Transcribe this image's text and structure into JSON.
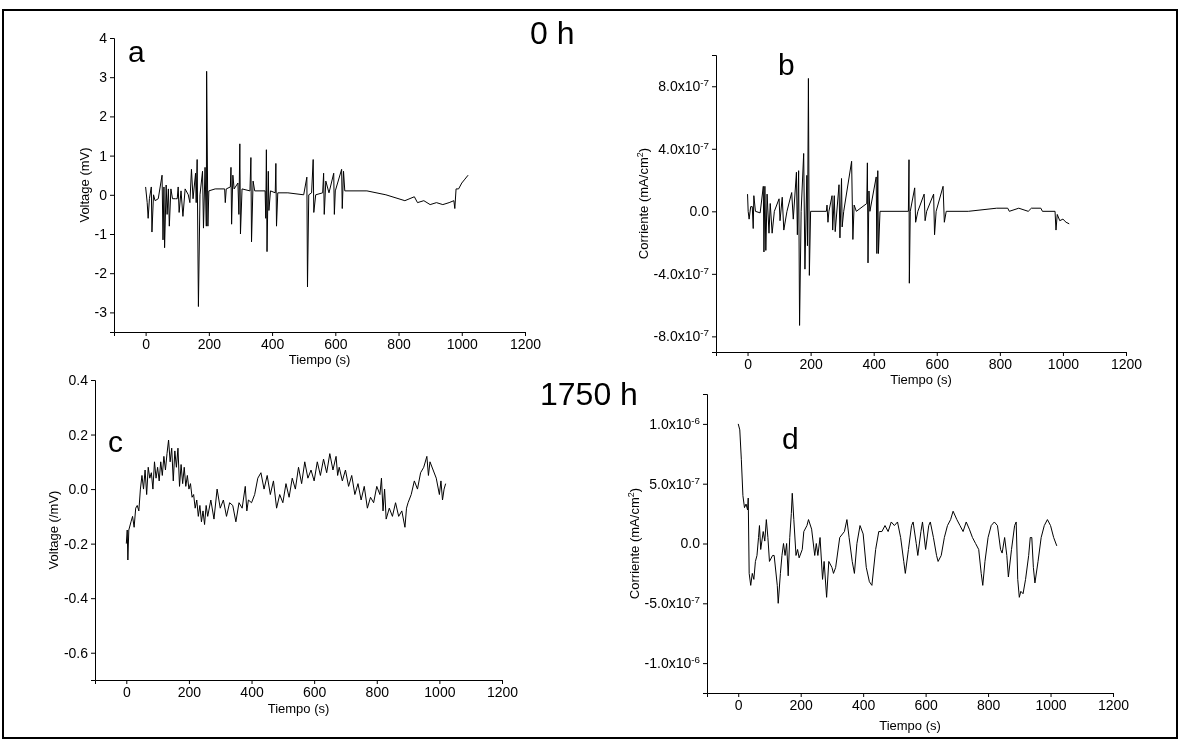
{
  "chart_data": [
    {
      "type": "line",
      "xlabel": "Tiempo (s)",
      "ylabel": "Voltage (mV)",
      "annotations": [
        "a"
      ],
      "xlim": [
        -100,
        1200
      ],
      "xticks": [
        0,
        200,
        400,
        600,
        800,
        1000,
        1200
      ],
      "ylim": [
        -3.5,
        4
      ],
      "yticks": [
        -3,
        -2,
        -1,
        0,
        1,
        2,
        3,
        4
      ],
      "grid": false,
      "series": [
        {
          "color": "#000000",
          "x": [
            0,
            5,
            8,
            12,
            18,
            20,
            25,
            30,
            40,
            52,
            55,
            58,
            60,
            65,
            68,
            72,
            75,
            80,
            85,
            95,
            100,
            103,
            106,
            112,
            118,
            125,
            135,
            140,
            145,
            150,
            158,
            160,
            163,
            167,
            172,
            180,
            183,
            188,
            192,
            193,
            197,
            200,
            220,
            250,
            252,
            255,
            268,
            270,
            272,
            276,
            280,
            292,
            295,
            298,
            300,
            305,
            330,
            333,
            335,
            340,
            345,
            378,
            380,
            382,
            384,
            388,
            390,
            395,
            410,
            412,
            414,
            418,
            450,
            500,
            510,
            512,
            516,
            525,
            530,
            532,
            538,
            560,
            563,
            565,
            570,
            580,
            595,
            597,
            600,
            620,
            622,
            626,
            630,
            700,
            760,
            820,
            850,
            860,
            880,
            900,
            920,
            940,
            960,
            975,
            978,
            982,
            990,
            1000,
            1010,
            1020
          ],
          "values": [
            0.2,
            -0.2,
            -0.6,
            -0.1,
            0.2,
            -0.95,
            0,
            -0.15,
            -0.1,
            0.5,
            -1.15,
            0.2,
            -1.35,
            0.25,
            -0.5,
            0.15,
            -0.8,
            0.15,
            -0.1,
            -0.1,
            -0.1,
            0.2,
            -0.45,
            0.1,
            -0.55,
            0.15,
            0,
            -0.2,
            0.65,
            -0.1,
            0.55,
            -0.2,
            0.9,
            -2.85,
            0,
            0.6,
            -0.85,
            0.7,
            -0.8,
            3.15,
            -0.8,
            0.1,
            0.15,
            0.15,
            -0.2,
            0.15,
            0.2,
            0.7,
            -0.75,
            0.5,
            0.15,
            0.3,
            -0.5,
            1.3,
            -1,
            0.15,
            0.1,
            0.95,
            -1.2,
            0.35,
            0.1,
            0.1,
            -0.6,
            1.15,
            -1.45,
            0.6,
            -0.4,
            0.1,
            0.05,
            0.8,
            -0.8,
            0.05,
            0.05,
            0,
            0.45,
            -2.35,
            0,
            0.05,
            0.9,
            -0.45,
            0,
            0.05,
            0.55,
            -0.5,
            0.35,
            0.05,
            0.55,
            -0.5,
            0.1,
            0.65,
            -0.35,
            0.6,
            0.1,
            0.1,
            0,
            -0.15,
            -0.05,
            -0.2,
            -0.15,
            -0.25,
            -0.2,
            -0.25,
            -0.2,
            -0.15,
            -0.35,
            0.15,
            0.15,
            0.3,
            0.4,
            0.5
          ]
        }
      ]
    },
    {
      "type": "line",
      "xlabel": "Tiempo (s)",
      "ylabel": "Corriente (mA/cm$^{2}$)",
      "annotations": [
        "b",
        "0 h"
      ],
      "xlim": [
        -100,
        1200
      ],
      "xticks": [
        0,
        200,
        400,
        600,
        800,
        1000,
        1200
      ],
      "ylim": [
        -9e-07,
        1e-06
      ],
      "yticks": [
        {
          "value": -8e-07,
          "label": "-8.0x10$^{-7}$"
        },
        {
          "value": -4e-07,
          "label": "-4.0x10$^{-7}$"
        },
        {
          "value": 0,
          "label": "0.0"
        },
        {
          "value": 4e-07,
          "label": "4.0x10$^{-7}$"
        },
        {
          "value": 8e-07,
          "label": "8.0x10$^{-7}$"
        }
      ],
      "grid": false,
      "series": [
        {
          "color": "#000000",
          "x": [
            0,
            2,
            5,
            10,
            15,
            18,
            20,
            25,
            40,
            50,
            52,
            55,
            58,
            62,
            68,
            72,
            78,
            85,
            100,
            103,
            110,
            115,
            125,
            140,
            145,
            155,
            158,
            162,
            165,
            170,
            178,
            182,
            188,
            190,
            193,
            196,
            200,
            250,
            252,
            255,
            258,
            268,
            270,
            275,
            278,
            290,
            293,
            298,
            300,
            305,
            330,
            334,
            338,
            345,
            378,
            380,
            382,
            385,
            388,
            408,
            410,
            413,
            415,
            420,
            510,
            512,
            513,
            516,
            530,
            533,
            540,
            560,
            563,
            568,
            590,
            593,
            598,
            620,
            624,
            630,
            700,
            790,
            825,
            830,
            860,
            890,
            900,
            930,
            935,
            975,
            978,
            982,
            990,
            1000,
            1010,
            1020
          ],
          "values": [
            1.1e-07,
            0,
            -5e-08,
            3e-08,
            3e-08,
            -1.1e-07,
            1e-07,
            0,
            -1e-08,
            1.6e-07,
            -2.6e-07,
            1.6e-07,
            -2.5e-07,
            1.1e-07,
            -1.4e-07,
            5e-08,
            -1.4e-07,
            0,
            8e-08,
            -6e-08,
            9e-08,
            -1.2e-07,
            0,
            1.2e-07,
            -5e-08,
            2.5e-07,
            -1.5e-07,
            2.6e-07,
            -7.3e-07,
            0,
            3.7e-07,
            -3.7e-07,
            2.3e-07,
            -2.2e-07,
            8.5e-07,
            -4.1e-07,
            0,
            0,
            4e-08,
            -7e-08,
            0,
            1e-07,
            -1.2e-07,
            1e-07,
            -1.3e-07,
            1.7e-07,
            -1.7e-07,
            2.1e-07,
            -1e-07,
            0,
            3.2e-07,
            -1.8e-07,
            4e-08,
            0,
            5e-08,
            3.1e-07,
            -3.3e-07,
            1.3e-07,
            0,
            2.2e-07,
            -2.7e-07,
            2.6e-07,
            -2.7e-07,
            0,
            0,
            3.3e-07,
            -4.6e-07,
            0,
            1.5e-07,
            -7e-08,
            0,
            1.1e-07,
            -6e-08,
            0,
            1.1e-07,
            -1.5e-07,
            0,
            1.6e-07,
            -7e-08,
            0,
            0,
            2e-08,
            2e-08,
            0,
            2e-08,
            0,
            2e-08,
            2e-08,
            0,
            0,
            -1.2e-07,
            -2e-08,
            -6e-08,
            -5e-08,
            -7e-08,
            -8e-08
          ]
        }
      ]
    },
    {
      "type": "line",
      "xlabel": "Tiempo (s)",
      "ylabel": "Voltage (/mV)",
      "annotations": [
        "c"
      ],
      "xlim": [
        -100,
        1200
      ],
      "xticks": [
        0,
        200,
        400,
        600,
        800,
        1000,
        1200
      ],
      "ylim": [
        -0.7,
        0.4
      ],
      "yticks": [
        -0.6,
        -0.4,
        -0.2,
        {
          "value": 0,
          "label": "0.0"
        },
        0.2,
        0.4
      ],
      "grid": false,
      "series": [
        {
          "color": "#000000",
          "x": [
            0,
            3,
            5,
            8,
            15,
            20,
            25,
            30,
            35,
            40,
            45,
            50,
            55,
            60,
            65,
            70,
            75,
            80,
            85,
            90,
            95,
            100,
            105,
            110,
            115,
            120,
            125,
            130,
            135,
            140,
            145,
            150,
            155,
            160,
            165,
            170,
            175,
            180,
            185,
            190,
            195,
            200,
            205,
            210,
            215,
            220,
            225,
            230,
            235,
            240,
            245,
            250,
            255,
            260,
            270,
            280,
            290,
            300,
            310,
            320,
            330,
            340,
            350,
            360,
            370,
            380,
            385,
            390,
            400,
            410,
            420,
            430,
            440,
            450,
            460,
            470,
            480,
            490,
            500,
            510,
            520,
            530,
            540,
            550,
            560,
            570,
            580,
            590,
            600,
            610,
            620,
            630,
            640,
            650,
            660,
            670,
            675,
            680,
            690,
            700,
            710,
            720,
            730,
            740,
            750,
            760,
            770,
            780,
            790,
            800,
            810,
            815,
            820,
            825,
            830,
            840,
            850,
            860,
            870,
            880,
            890,
            895,
            900,
            910,
            920,
            930,
            940,
            950,
            960,
            965,
            970,
            980,
            990,
            1000,
            1005,
            1010,
            1015,
            1020
          ],
          "values": [
            -0.2,
            -0.15,
            -0.26,
            -0.15,
            -0.12,
            -0.1,
            -0.14,
            -0.07,
            -0.06,
            -0.08,
            0,
            0.05,
            0,
            0.07,
            -0.02,
            0.08,
            0.04,
            0.06,
            0,
            0.1,
            0.04,
            0.08,
            0.03,
            0.1,
            0.05,
            0.12,
            0.07,
            0.13,
            0.18,
            0.1,
            0.15,
            0.03,
            0.14,
            0.08,
            0.15,
            0.01,
            0.09,
            0.02,
            0.08,
            0.01,
            0.05,
            0,
            0.02,
            -0.03,
            -0.02,
            -0.07,
            -0.04,
            -0.1,
            -0.06,
            -0.12,
            -0.08,
            -0.13,
            -0.06,
            -0.1,
            -0.04,
            -0.11,
            0,
            -0.07,
            -0.04,
            -0.1,
            -0.05,
            -0.06,
            -0.12,
            -0.05,
            -0.07,
            0.01,
            -0.08,
            -0.04,
            -0.05,
            -0.02,
            0.04,
            0.06,
            0,
            0.05,
            -0.02,
            0.03,
            -0.07,
            -0.02,
            -0.05,
            0.02,
            -0.03,
            0.04,
            0,
            0.08,
            0.02,
            0.1,
            0.04,
            0.07,
            0.03,
            0.1,
            0.05,
            0.11,
            0.06,
            0.13,
            0.07,
            0.12,
            0.05,
            0.08,
            0.03,
            0.07,
            0.01,
            0.05,
            -0.02,
            0.02,
            -0.04,
            0.01,
            -0.07,
            -0.03,
            -0.05,
            0.01,
            -0.02,
            0.04,
            -0.08,
            0,
            -0.11,
            -0.07,
            -0.1,
            -0.05,
            -0.1,
            -0.08,
            -0.14,
            -0.07,
            -0.05,
            -0.02,
            0.03,
            0,
            0.06,
            0.08,
            0.12,
            0.05,
            0.1,
            0.07,
            0.04,
            -0.02,
            0.03,
            -0.04,
            0,
            0.02
          ]
        }
      ]
    },
    {
      "type": "line",
      "xlabel": "Tiempo (s)",
      "ylabel": "Corriente (mA/cm$^{2}$)",
      "annotations": [
        "d",
        "1750 h"
      ],
      "xlim": [
        -100,
        1200
      ],
      "xticks": [
        0,
        200,
        400,
        600,
        800,
        1000,
        1200
      ],
      "ylim": [
        -1.25e-06,
        1.25e-06
      ],
      "yticks": [
        {
          "value": -1e-06,
          "label": "-1.0x10$^{-6}$"
        },
        {
          "value": -5e-07,
          "label": "-5.0x10$^{-7}$"
        },
        {
          "value": 0,
          "label": "0.0"
        },
        {
          "value": 5e-07,
          "label": "5.0x10$^{-7}$"
        },
        {
          "value": 1e-06,
          "label": "1.0x10$^{-6}$"
        }
      ],
      "grid": false,
      "series": [
        {
          "color": "#000000",
          "x": [
            0,
            5,
            10,
            15,
            20,
            25,
            30,
            32,
            35,
            40,
            45,
            50,
            55,
            60,
            65,
            68,
            72,
            80,
            85,
            90,
            95,
            100,
            110,
            115,
            125,
            128,
            135,
            140,
            145,
            150,
            155,
            160,
            165,
            170,
            173,
            178,
            185,
            190,
            195,
            205,
            210,
            220,
            225,
            235,
            245,
            250,
            255,
            262,
            270,
            275,
            283,
            290,
            300,
            305,
            312,
            325,
            340,
            348,
            355,
            365,
            372,
            380,
            390,
            400,
            410,
            420,
            428,
            440,
            450,
            460,
            470,
            480,
            490,
            500,
            510,
            520,
            530,
            535,
            545,
            555,
            560,
            570,
            575,
            585,
            590,
            600,
            610,
            615,
            625,
            635,
            640,
            650,
            660,
            670,
            680,
            688,
            700,
            710,
            720,
            730,
            740,
            750,
            760,
            770,
            778,
            783,
            790,
            800,
            810,
            820,
            830,
            840,
            845,
            853,
            860,
            865,
            875,
            885,
            890,
            895,
            900,
            905,
            912,
            920,
            930,
            935,
            940,
            945,
            950,
            960,
            970,
            980,
            990,
            1000,
            1010,
            1020
          ],
          "values": [
            1e-06,
            9.5e-07,
            7e-07,
            4e-07,
            3e-07,
            3.3e-07,
            2.8e-07,
            3.8e-07,
            -2.5e-07,
            -3.5e-07,
            -2.5e-07,
            -3e-07,
            -1.5e-07,
            -1e-07,
            5e-08,
            1.5e-07,
            -5e-08,
            1e-07,
            2e-08,
            2e-07,
            5e-08,
            -1.5e-07,
            -1e-07,
            -1e-07,
            -3.5e-07,
            -5e-07,
            -2.5e-07,
            -1e-07,
            0,
            -1e-07,
            0,
            -2.7e-07,
            5e-08,
            2.5e-07,
            4.2e-07,
            2e-07,
            -1e-07,
            -5e-08,
            -1.2e-07,
            -5e-08,
            1e-07,
            1.5e-07,
            2e-07,
            1.2e-07,
            -1e-07,
            0,
            -1e-07,
            5e-08,
            -3e-07,
            -1.5e-07,
            -4.5e-07,
            -1.5e-07,
            -2e-07,
            -2.5e-07,
            -2e-07,
            5e-08,
            1e-07,
            2e-07,
            5e-08,
            -1.5e-07,
            -2.5e-07,
            0,
            1.5e-07,
            8e-08,
            -2e-07,
            -3.2e-07,
            -3.5e-07,
            -5e-08,
            1e-07,
            1e-07,
            1.5e-07,
            1e-07,
            1.8e-07,
            1.5e-07,
            1.8e-07,
            5e-08,
            -1.5e-07,
            -2.5e-07,
            -5e-08,
            1.5e-07,
            1.8e-07,
            0,
            -1e-07,
            1e-07,
            1.8e-07,
            -5e-08,
            1.5e-07,
            1.8e-07,
            5e-08,
            -1e-07,
            -1.5e-07,
            -1e-07,
            5e-08,
            1.5e-07,
            2e-07,
            2.7e-07,
            2e-07,
            1.5e-07,
            1e-07,
            1.8e-07,
            1.2e-07,
            5e-08,
            0,
            -5e-08,
            -2.5e-07,
            -3.5e-07,
            -1.5e-07,
            5e-08,
            1.5e-07,
            1.8e-07,
            1.5e-07,
            -5e-08,
            -8e-08,
            5e-08,
            -1e-07,
            -2.8e-07,
            -5e-08,
            1.5e-07,
            1.8e-07,
            -3e-07,
            -4.5e-07,
            -4e-07,
            -4.2e-07,
            -3e-07,
            -1e-07,
            5e-08,
            5e-08,
            -2e-07,
            -3.3e-07,
            -1.5e-07,
            5e-08,
            1.5e-07,
            2e-07,
            1.5e-07,
            5e-08,
            -2e-08
          ]
        }
      ]
    }
  ]
}
